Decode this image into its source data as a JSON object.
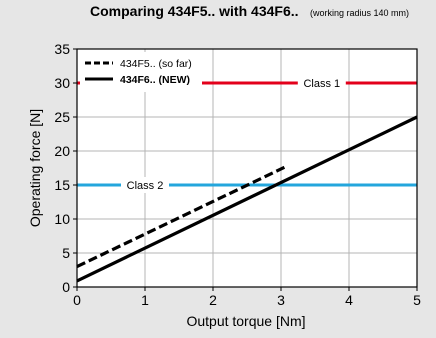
{
  "chart_data": {
    "type": "line",
    "title": "Comparing 434F5.. with 434F6..",
    "subtitle": "(working radius 140 mm)",
    "xlabel": "Output torque [Nm]",
    "ylabel": "Operating force [N]",
    "xlim": [
      0,
      5
    ],
    "ylim": [
      0,
      35
    ],
    "x_ticks": [
      "0",
      "1",
      "2",
      "3",
      "4",
      "5"
    ],
    "y_ticks": [
      "0",
      "5",
      "10",
      "15",
      "20",
      "25",
      "30",
      "35"
    ],
    "grid": true,
    "legend_position": "top-left",
    "series": [
      {
        "name": "434F5.. (so far)",
        "style": "dashed",
        "color": "#000000",
        "x": [
          0,
          3.05
        ],
        "y": [
          3,
          17.6
        ]
      },
      {
        "name": "434F6.. (NEW)",
        "style": "solid",
        "color": "#000000",
        "x": [
          0,
          5
        ],
        "y": [
          0.9,
          25
        ]
      }
    ],
    "reference_lines": [
      {
        "label": "Class 1",
        "y": 30,
        "color": "#e3001b",
        "label_x": 3.6
      },
      {
        "label": "Class 2",
        "y": 15,
        "color": "#23a6dc",
        "label_x": 1.0
      }
    ]
  },
  "colors": {
    "background": "#e6e6e6",
    "plot_background": "#ffffff",
    "grid": "#b4b4b4"
  }
}
